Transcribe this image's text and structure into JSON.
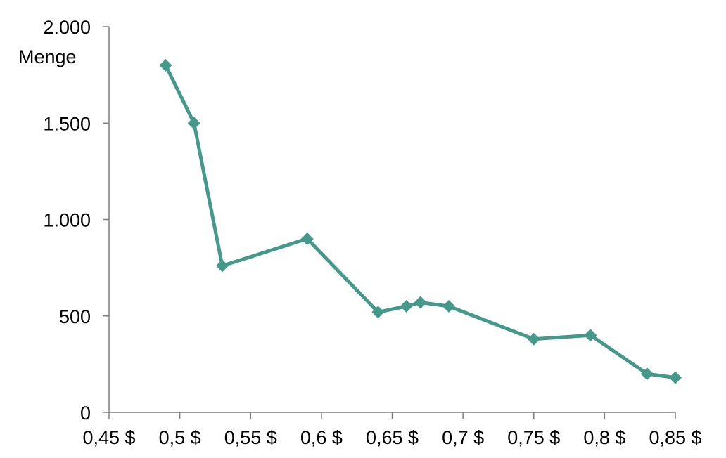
{
  "chart_data": {
    "type": "line",
    "ylabel": "Menge",
    "xlabel": "",
    "xlim": [
      0.45,
      0.85
    ],
    "ylim": [
      0,
      2000
    ],
    "x_ticks": [
      0.45,
      0.5,
      0.55,
      0.6,
      0.65,
      0.7,
      0.75,
      0.8,
      0.85
    ],
    "x_tick_labels": [
      "0,45 $",
      "0,5 $",
      "0,55 $",
      "0,6 $",
      "0,65 $",
      "0,7 $",
      "0,75 $",
      "0,8 $",
      "0,85 $"
    ],
    "y_ticks": [
      0,
      500,
      1000,
      1500,
      2000
    ],
    "y_tick_labels": [
      "0",
      "500",
      "1.000",
      "1.500",
      "2.000"
    ],
    "grid": false,
    "legend": "none",
    "series": [
      {
        "color": "#44998a",
        "marker": "diamond",
        "points": [
          {
            "x": 0.49,
            "y": 1800
          },
          {
            "x": 0.51,
            "y": 1500
          },
          {
            "x": 0.53,
            "y": 760
          },
          {
            "x": 0.59,
            "y": 900
          },
          {
            "x": 0.64,
            "y": 520
          },
          {
            "x": 0.66,
            "y": 550
          },
          {
            "x": 0.67,
            "y": 570
          },
          {
            "x": 0.69,
            "y": 550
          },
          {
            "x": 0.75,
            "y": 380
          },
          {
            "x": 0.79,
            "y": 400
          },
          {
            "x": 0.83,
            "y": 200
          },
          {
            "x": 0.85,
            "y": 180
          }
        ]
      }
    ]
  }
}
